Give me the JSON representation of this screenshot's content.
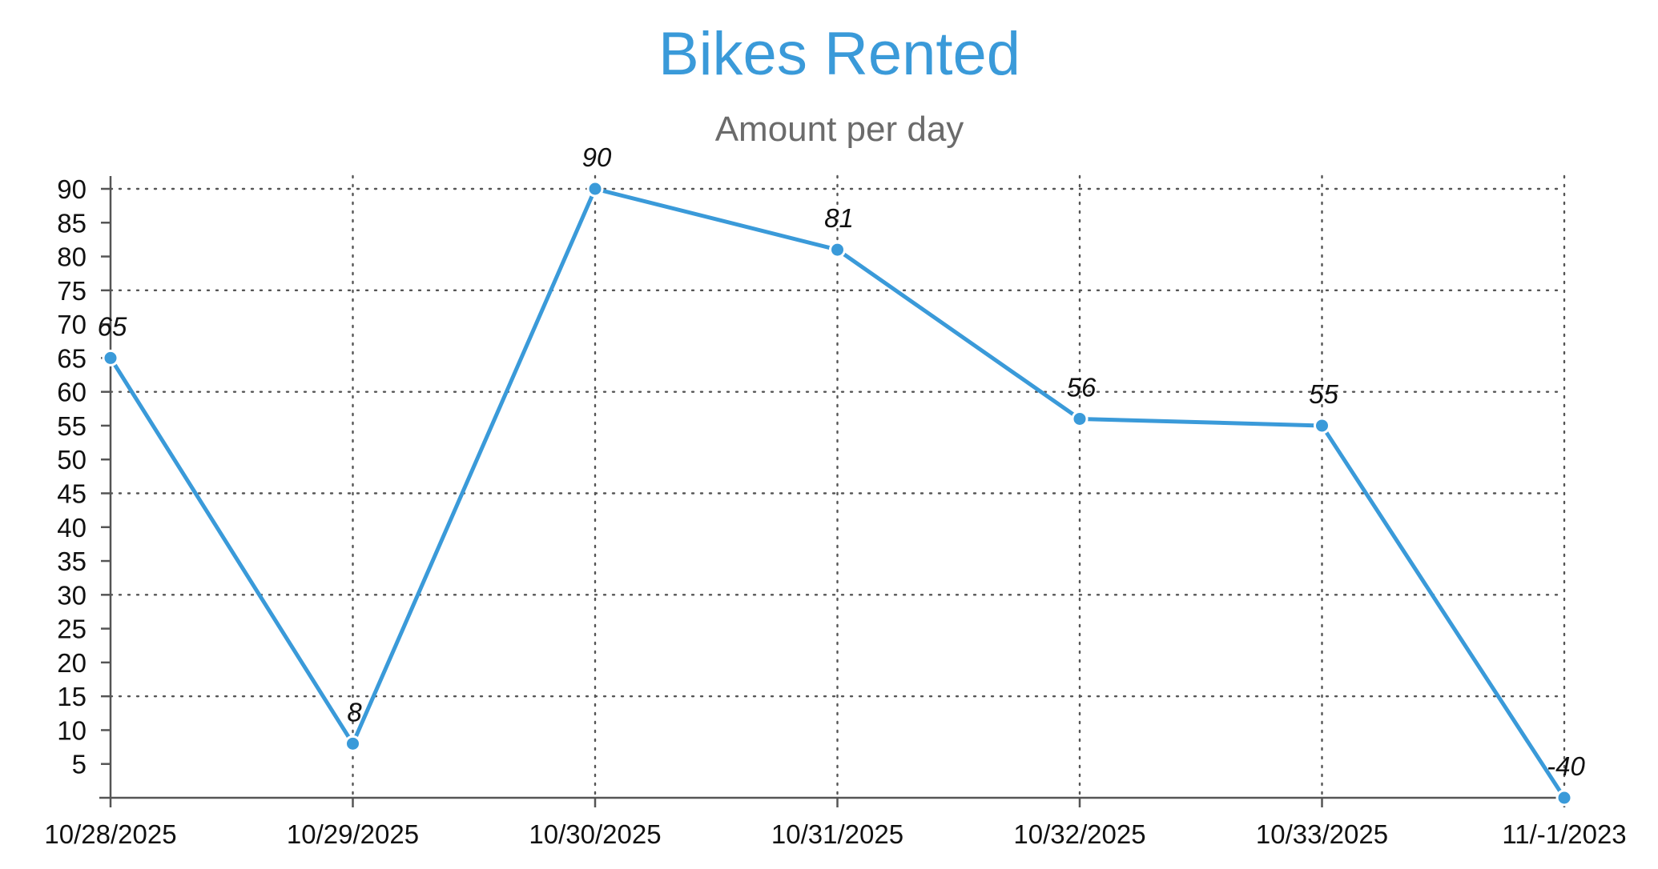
{
  "chart_data": {
    "type": "line",
    "title": "Bikes Rented",
    "subtitle": "Amount per day",
    "categories": [
      "10/28/2025",
      "10/29/2025",
      "10/30/2025",
      "10/31/2025",
      "10/32/2025",
      "10/33/2025",
      "11/-1/2023"
    ],
    "series": [
      {
        "values": [
          65,
          8,
          90,
          81,
          56,
          55,
          -40
        ]
      }
    ],
    "data_labels": [
      "65",
      "8",
      "90",
      "81",
      "56",
      "55",
      "-40"
    ],
    "y_ticks": [
      5,
      10,
      15,
      20,
      25,
      30,
      35,
      40,
      45,
      50,
      55,
      60,
      65,
      70,
      75,
      80,
      85,
      90
    ],
    "ylim": [
      0,
      90
    ],
    "grid": true,
    "legend": "none",
    "colors": {
      "series": "#3a9ad9",
      "title": "#3a9ad9",
      "subtitle": "#6b6b6b",
      "grid": "#555555"
    }
  }
}
